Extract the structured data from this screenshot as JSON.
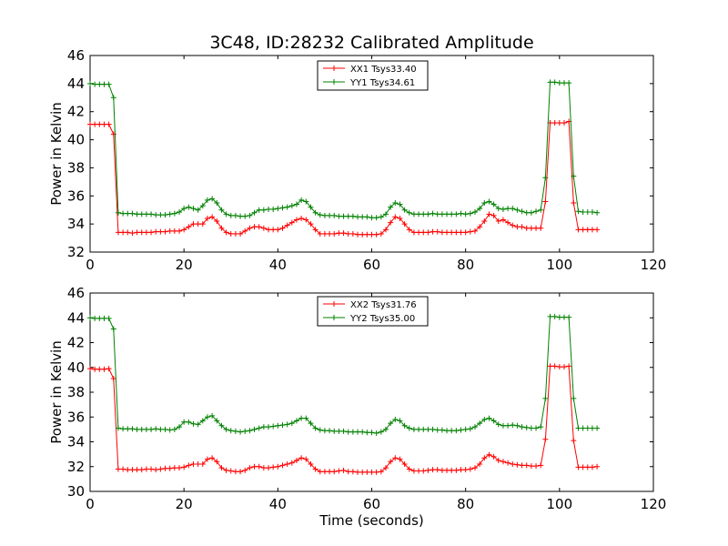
{
  "chart_data": [
    {
      "type": "line",
      "title": "3C48, ID:28232 Calibrated Amplitude",
      "xlabel": "",
      "ylabel": "Power in Kelvin",
      "xlim": [
        0,
        120
      ],
      "ylim": [
        32,
        46
      ],
      "xticks": [
        "0",
        "20",
        "40",
        "60",
        "80",
        "100",
        "120"
      ],
      "yticks": [
        "32",
        "34",
        "36",
        "38",
        "40",
        "42",
        "44",
        "46"
      ],
      "legend_position": "top-center",
      "grid": false,
      "series": [
        {
          "name": "XX1 Tsys33.40",
          "color": "#ff0000",
          "x": [
            0,
            1,
            2,
            3,
            4,
            5,
            6,
            7,
            8,
            9,
            10,
            11,
            12,
            13,
            14,
            15,
            16,
            17,
            18,
            19,
            20,
            21,
            22,
            23,
            24,
            25,
            26,
            27,
            28,
            29,
            30,
            31,
            32,
            33,
            34,
            35,
            36,
            37,
            38,
            39,
            40,
            41,
            42,
            43,
            44,
            45,
            46,
            47,
            48,
            49,
            50,
            51,
            52,
            53,
            54,
            55,
            56,
            57,
            58,
            59,
            60,
            61,
            62,
            63,
            64,
            65,
            66,
            67,
            68,
            69,
            70,
            71,
            72,
            73,
            74,
            75,
            76,
            77,
            78,
            79,
            80,
            81,
            82,
            83,
            84,
            85,
            86,
            87,
            88,
            89,
            90,
            91,
            92,
            93,
            94,
            95,
            96,
            97,
            98,
            99,
            100,
            101,
            102,
            103,
            104,
            105,
            106,
            107,
            108
          ],
          "values": [
            41.1,
            41.1,
            41.1,
            41.1,
            41.1,
            40.4,
            33.4,
            33.4,
            33.4,
            33.35,
            33.4,
            33.4,
            33.4,
            33.4,
            33.45,
            33.45,
            33.45,
            33.5,
            33.5,
            33.5,
            33.6,
            33.8,
            34.0,
            34.0,
            34.0,
            34.4,
            34.5,
            34.2,
            33.7,
            33.4,
            33.3,
            33.3,
            33.3,
            33.5,
            33.7,
            33.8,
            33.8,
            33.7,
            33.6,
            33.6,
            33.6,
            33.7,
            33.9,
            34.1,
            34.3,
            34.4,
            34.3,
            34.0,
            33.6,
            33.3,
            33.3,
            33.3,
            33.3,
            33.35,
            33.35,
            33.3,
            33.3,
            33.25,
            33.25,
            33.25,
            33.25,
            33.25,
            33.3,
            33.6,
            34.1,
            34.5,
            34.4,
            34.0,
            33.6,
            33.4,
            33.4,
            33.4,
            33.4,
            33.45,
            33.45,
            33.4,
            33.4,
            33.4,
            33.4,
            33.4,
            33.4,
            33.45,
            33.5,
            33.8,
            34.2,
            34.7,
            34.6,
            34.2,
            34.3,
            34.1,
            33.9,
            33.8,
            33.8,
            33.7,
            33.7,
            33.7,
            33.7,
            35.6,
            41.2,
            41.2,
            41.2,
            41.2,
            41.3,
            35.5,
            33.6,
            33.6,
            33.6,
            33.6,
            33.6
          ]
        },
        {
          "name": "YY1 Tsys34.61",
          "color": "#008000",
          "x": [
            0,
            1,
            2,
            3,
            4,
            5,
            6,
            7,
            8,
            9,
            10,
            11,
            12,
            13,
            14,
            15,
            16,
            17,
            18,
            19,
            20,
            21,
            22,
            23,
            24,
            25,
            26,
            27,
            28,
            29,
            30,
            31,
            32,
            33,
            34,
            35,
            36,
            37,
            38,
            39,
            40,
            41,
            42,
            43,
            44,
            45,
            46,
            47,
            48,
            49,
            50,
            51,
            52,
            53,
            54,
            55,
            56,
            57,
            58,
            59,
            60,
            61,
            62,
            63,
            64,
            65,
            66,
            67,
            68,
            69,
            70,
            71,
            72,
            73,
            74,
            75,
            76,
            77,
            78,
            79,
            80,
            81,
            82,
            83,
            84,
            85,
            86,
            87,
            88,
            89,
            90,
            91,
            92,
            93,
            94,
            95,
            96,
            97,
            98,
            99,
            100,
            101,
            102,
            103,
            104,
            105,
            106,
            107,
            108
          ],
          "values": [
            44.0,
            43.95,
            43.95,
            43.95,
            43.95,
            43.0,
            34.8,
            34.75,
            34.75,
            34.75,
            34.7,
            34.7,
            34.7,
            34.7,
            34.65,
            34.65,
            34.65,
            34.7,
            34.75,
            34.85,
            35.1,
            35.2,
            35.1,
            35.0,
            35.3,
            35.7,
            35.8,
            35.5,
            35.0,
            34.7,
            34.6,
            34.6,
            34.55,
            34.55,
            34.6,
            34.8,
            35.0,
            35.0,
            35.05,
            35.05,
            35.1,
            35.15,
            35.2,
            35.3,
            35.4,
            35.7,
            35.6,
            35.2,
            34.8,
            34.65,
            34.6,
            34.6,
            34.6,
            34.55,
            34.55,
            34.55,
            34.55,
            34.5,
            34.5,
            34.5,
            34.45,
            34.45,
            34.5,
            34.7,
            35.2,
            35.5,
            35.4,
            35.0,
            34.8,
            34.7,
            34.7,
            34.7,
            34.7,
            34.75,
            34.7,
            34.7,
            34.7,
            34.7,
            34.7,
            34.75,
            34.7,
            34.75,
            34.85,
            35.1,
            35.5,
            35.6,
            35.4,
            35.1,
            35.05,
            35.1,
            35.1,
            35.0,
            34.9,
            34.8,
            34.8,
            34.9,
            35.0,
            37.3,
            44.1,
            44.1,
            44.05,
            44.05,
            44.05,
            37.4,
            34.9,
            34.85,
            34.85,
            34.85,
            34.8
          ]
        }
      ]
    },
    {
      "type": "line",
      "title": "",
      "xlabel": "Time (seconds)",
      "ylabel": "Power in Kelvin",
      "xlim": [
        0,
        120
      ],
      "ylim": [
        30,
        46
      ],
      "xticks": [
        "0",
        "20",
        "40",
        "60",
        "80",
        "100",
        "120"
      ],
      "yticks": [
        "30",
        "32",
        "34",
        "36",
        "38",
        "40",
        "42",
        "44",
        "46"
      ],
      "legend_position": "top-center",
      "grid": false,
      "series": [
        {
          "name": "XX2 Tsys31.76",
          "color": "#ff0000",
          "x": [
            0,
            1,
            2,
            3,
            4,
            5,
            6,
            7,
            8,
            9,
            10,
            11,
            12,
            13,
            14,
            15,
            16,
            17,
            18,
            19,
            20,
            21,
            22,
            23,
            24,
            25,
            26,
            27,
            28,
            29,
            30,
            31,
            32,
            33,
            34,
            35,
            36,
            37,
            38,
            39,
            40,
            41,
            42,
            43,
            44,
            45,
            46,
            47,
            48,
            49,
            50,
            51,
            52,
            53,
            54,
            55,
            56,
            57,
            58,
            59,
            60,
            61,
            62,
            63,
            64,
            65,
            66,
            67,
            68,
            69,
            70,
            71,
            72,
            73,
            74,
            75,
            76,
            77,
            78,
            79,
            80,
            81,
            82,
            83,
            84,
            85,
            86,
            87,
            88,
            89,
            90,
            91,
            92,
            93,
            94,
            95,
            96,
            97,
            98,
            99,
            100,
            101,
            102,
            103,
            104,
            105,
            106,
            107,
            108
          ],
          "values": [
            39.9,
            39.85,
            39.85,
            39.85,
            39.9,
            39.1,
            31.8,
            31.8,
            31.75,
            31.75,
            31.75,
            31.75,
            31.8,
            31.8,
            31.75,
            31.8,
            31.85,
            31.85,
            31.9,
            31.9,
            31.95,
            32.1,
            32.2,
            32.2,
            32.2,
            32.6,
            32.7,
            32.4,
            31.9,
            31.7,
            31.65,
            31.6,
            31.6,
            31.7,
            31.9,
            32.0,
            32.0,
            31.9,
            31.9,
            31.95,
            32.0,
            32.1,
            32.2,
            32.3,
            32.5,
            32.7,
            32.6,
            32.2,
            31.8,
            31.6,
            31.6,
            31.6,
            31.6,
            31.65,
            31.7,
            31.6,
            31.6,
            31.55,
            31.55,
            31.55,
            31.55,
            31.55,
            31.6,
            31.9,
            32.4,
            32.7,
            32.6,
            32.2,
            31.8,
            31.65,
            31.65,
            31.65,
            31.7,
            31.75,
            31.75,
            31.7,
            31.7,
            31.7,
            31.7,
            31.75,
            31.75,
            31.8,
            31.9,
            32.2,
            32.7,
            32.95,
            32.8,
            32.5,
            32.4,
            32.3,
            32.2,
            32.15,
            32.1,
            32.1,
            32.05,
            32.05,
            32.1,
            34.2,
            40.1,
            40.1,
            40.05,
            40.05,
            40.1,
            34.1,
            31.95,
            31.95,
            31.95,
            31.95,
            32.0
          ]
        },
        {
          "name": "YY2 Tsys35.00",
          "color": "#008000",
          "x": [
            0,
            1,
            2,
            3,
            4,
            5,
            6,
            7,
            8,
            9,
            10,
            11,
            12,
            13,
            14,
            15,
            16,
            17,
            18,
            19,
            20,
            21,
            22,
            23,
            24,
            25,
            26,
            27,
            28,
            29,
            30,
            31,
            32,
            33,
            34,
            35,
            36,
            37,
            38,
            39,
            40,
            41,
            42,
            43,
            44,
            45,
            46,
            47,
            48,
            49,
            50,
            51,
            52,
            53,
            54,
            55,
            56,
            57,
            58,
            59,
            60,
            61,
            62,
            63,
            64,
            65,
            66,
            67,
            68,
            69,
            70,
            71,
            72,
            73,
            74,
            75,
            76,
            77,
            78,
            79,
            80,
            81,
            82,
            83,
            84,
            85,
            86,
            87,
            88,
            89,
            90,
            91,
            92,
            93,
            94,
            95,
            96,
            97,
            98,
            99,
            100,
            101,
            102,
            103,
            104,
            105,
            106,
            107,
            108
          ],
          "values": [
            44.0,
            43.95,
            43.95,
            43.95,
            43.95,
            43.1,
            35.1,
            35.05,
            35.05,
            35.05,
            35.0,
            35.0,
            35.0,
            35.0,
            35.05,
            35.0,
            35.0,
            34.95,
            35.0,
            35.2,
            35.6,
            35.6,
            35.45,
            35.4,
            35.7,
            36.0,
            36.1,
            35.7,
            35.3,
            35.0,
            34.9,
            34.85,
            34.8,
            34.85,
            34.9,
            35.0,
            35.1,
            35.2,
            35.2,
            35.25,
            35.3,
            35.35,
            35.4,
            35.5,
            35.7,
            35.9,
            35.9,
            35.5,
            35.1,
            34.95,
            34.9,
            34.9,
            34.85,
            34.85,
            34.85,
            34.8,
            34.8,
            34.8,
            34.8,
            34.75,
            34.75,
            34.7,
            34.8,
            35.0,
            35.5,
            35.8,
            35.7,
            35.3,
            35.1,
            35.0,
            35.0,
            35.0,
            35.0,
            35.0,
            34.95,
            34.95,
            34.9,
            34.9,
            34.9,
            34.95,
            35.0,
            35.05,
            35.2,
            35.5,
            35.8,
            35.9,
            35.7,
            35.4,
            35.3,
            35.3,
            35.35,
            35.3,
            35.2,
            35.15,
            35.1,
            35.1,
            35.2,
            37.5,
            44.1,
            44.1,
            44.05,
            44.05,
            44.05,
            37.5,
            35.1,
            35.1,
            35.1,
            35.1,
            35.1
          ]
        }
      ]
    }
  ]
}
